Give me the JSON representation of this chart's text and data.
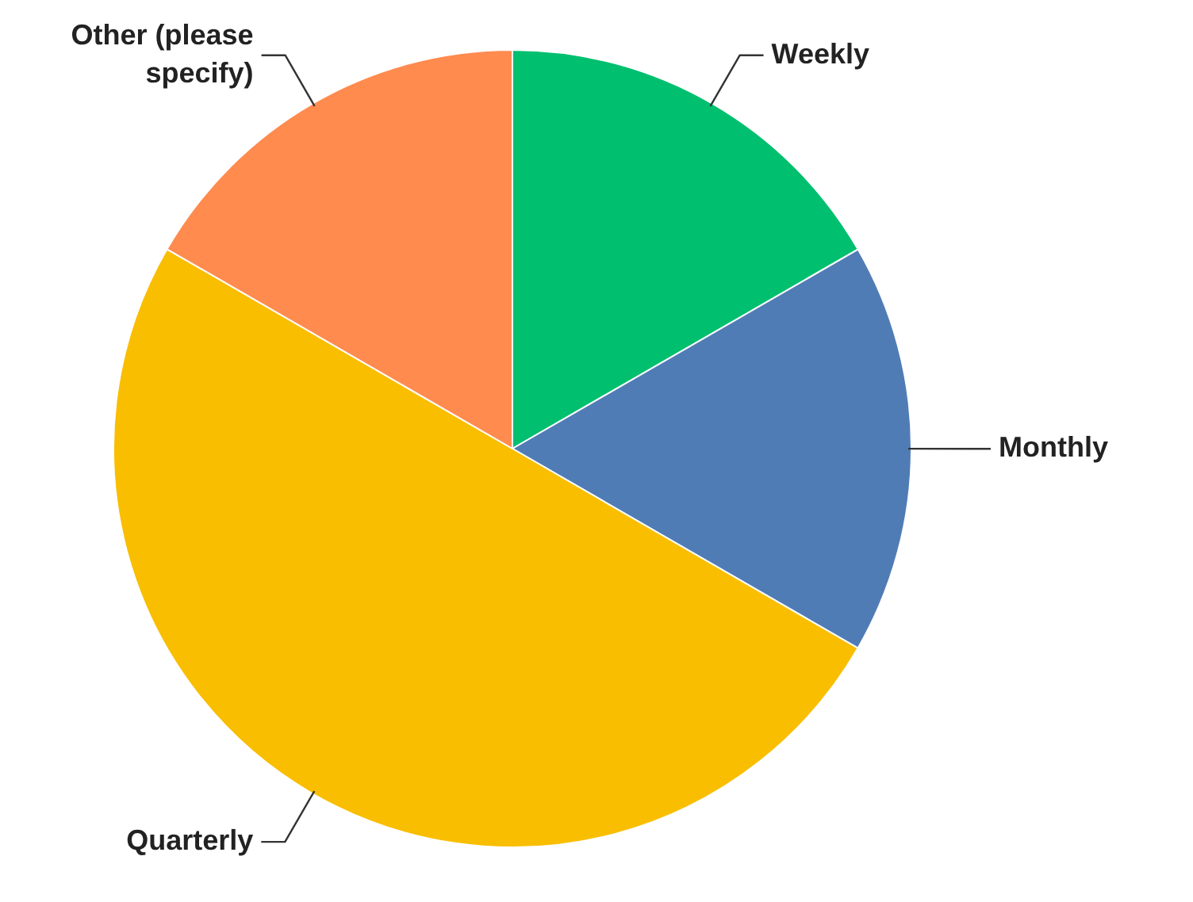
{
  "chart_data": {
    "type": "pie",
    "categories": [
      "Weekly",
      "Monthly",
      "Quarterly",
      "Other (please specify)"
    ],
    "values": [
      16.67,
      16.67,
      50,
      16.66
    ],
    "colors": [
      "#00bf6f",
      "#507cb6",
      "#f9be00",
      "#ff8b4f"
    ],
    "legend": false
  }
}
